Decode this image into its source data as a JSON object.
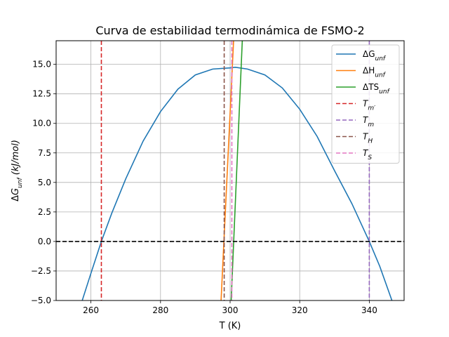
{
  "chart_data": {
    "type": "line",
    "title": "Curva de estabilidad termodinámica de FSMO-2",
    "xlabel": "T (K)",
    "ylabel": "ΔG_unf (kJ/mol)",
    "ylabel_parts": {
      "delta": "Δ",
      "g": "G",
      "sub": "unf",
      "unit": " (kJ/mol)"
    },
    "xlim": [
      250,
      350
    ],
    "ylim": [
      -5,
      17
    ],
    "x_ticks": [
      260,
      280,
      300,
      320,
      340
    ],
    "x_tick_labels": [
      "260",
      "280",
      "300",
      "320",
      "340"
    ],
    "y_ticks": [
      -5,
      -2.5,
      0,
      2.5,
      5,
      7.5,
      10,
      12.5,
      15
    ],
    "y_tick_labels": [
      "−5.0",
      "−2.5",
      "0.0",
      "2.5",
      "5.0",
      "7.5",
      "10.0",
      "12.5",
      "15.0"
    ],
    "grid": true,
    "legend_position": "top-right",
    "series": [
      {
        "name": "ΔG_unf",
        "label_main": "ΔG",
        "label_sub": "unf",
        "color": "#1f77b4",
        "kind": "curve",
        "x": [
          257.5,
          260,
          263,
          266,
          270,
          275,
          280,
          285,
          290,
          295,
          300,
          301.5,
          305,
          310,
          315,
          320,
          325,
          330,
          335,
          340,
          343,
          346.5
        ],
        "y": [
          -5.0,
          -2.7,
          0.0,
          2.4,
          5.3,
          8.5,
          11.0,
          12.9,
          14.1,
          14.6,
          14.7,
          14.75,
          14.6,
          14.1,
          13.0,
          11.2,
          8.9,
          6.0,
          3.2,
          0.0,
          -2.1,
          -5.0
        ]
      },
      {
        "name": "ΔH_unf",
        "label_main": "ΔH",
        "label_sub": "unf",
        "color": "#ff7f0e",
        "kind": "curve",
        "x": [
          297.4,
          301.0
        ],
        "y": [
          -5.0,
          17.0
        ]
      },
      {
        "name": "ΔTS_unf",
        "label_main": "ΔTS",
        "label_sub": "unf",
        "color": "#2ca02c",
        "kind": "curve",
        "x": [
          300.3,
          303.5
        ],
        "y": [
          -5.0,
          17.0
        ]
      },
      {
        "name": "T_m'",
        "label_main": "T",
        "label_sub": "m′",
        "color": "#d62728",
        "kind": "vline",
        "x_value": 263
      },
      {
        "name": "T_m",
        "label_main": "T",
        "label_sub": "m",
        "color": "#9467bd",
        "kind": "vline",
        "x_value": 340
      },
      {
        "name": "T_H",
        "label_main": "T",
        "label_sub": "H",
        "color": "#8c564b",
        "kind": "vline",
        "x_value": 298.3
      },
      {
        "name": "T_S",
        "label_main": "T",
        "label_sub": "S",
        "color": "#e377c2",
        "kind": "vline",
        "x_value": 300.5
      }
    ],
    "zero_line": {
      "y_value": 0,
      "color": "#000000"
    }
  }
}
